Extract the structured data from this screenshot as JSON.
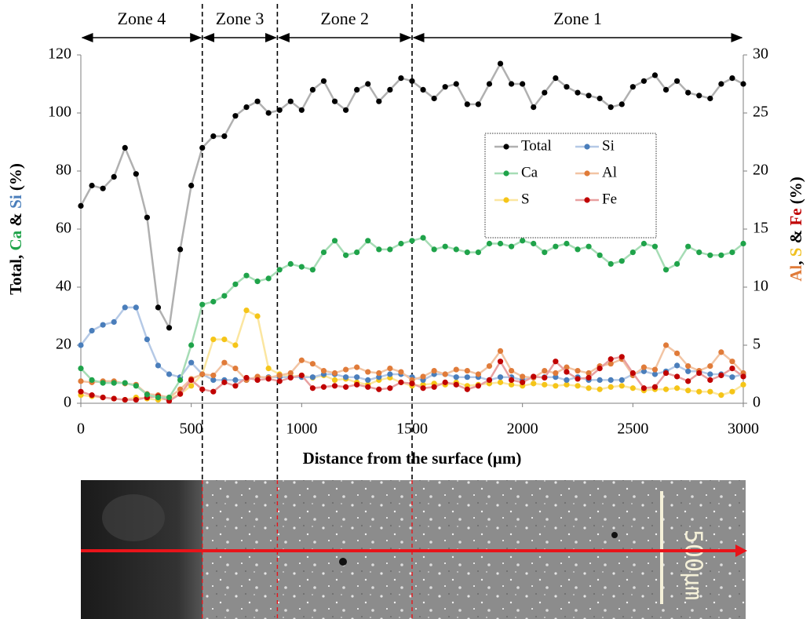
{
  "chart_data": {
    "type": "line",
    "xlabel": "Distance from the surface (µm)",
    "ylabel_parts": [
      {
        "text": "Total, ",
        "color": "#000000"
      },
      {
        "text": "Ca",
        "color": "#1fa34a"
      },
      {
        "text": " & ",
        "color": "#000000"
      },
      {
        "text": "Si",
        "color": "#4a7ebb"
      },
      {
        "text": " (%)",
        "color": "#000000"
      }
    ],
    "y2label_parts": [
      {
        "text": "Al",
        "color": "#e07b39"
      },
      {
        "text": ", ",
        "color": "#000000"
      },
      {
        "text": "S",
        "color": "#f0c020"
      },
      {
        "text": " & ",
        "color": "#000000"
      },
      {
        "text": "Fe",
        "color": "#c00000"
      },
      {
        "text": " (%)",
        "color": "#000000"
      }
    ],
    "xlim": [
      0,
      3000
    ],
    "xticks": [
      0,
      500,
      1000,
      1500,
      2000,
      2500,
      3000
    ],
    "ylim": [
      0,
      120
    ],
    "yticks": [
      0,
      20,
      40,
      60,
      80,
      100,
      120
    ],
    "y2lim": [
      0,
      30
    ],
    "y2ticks": [
      0,
      5,
      10,
      15,
      20,
      25,
      30
    ],
    "zones": [
      {
        "label": "Zone 4",
        "from": 0,
        "to": 550
      },
      {
        "label": "Zone 3",
        "from": 550,
        "to": 890
      },
      {
        "label": "Zone 2",
        "from": 890,
        "to": 1500
      },
      {
        "label": "Zone 1",
        "from": 1500,
        "to": 3000
      }
    ],
    "scale_bar": "500µm",
    "x": [
      0,
      50,
      100,
      150,
      200,
      250,
      300,
      350,
      400,
      450,
      500,
      550,
      600,
      650,
      700,
      750,
      800,
      850,
      900,
      950,
      1000,
      1050,
      1100,
      1150,
      1200,
      1250,
      1300,
      1350,
      1400,
      1450,
      1500,
      1550,
      1600,
      1650,
      1700,
      1750,
      1800,
      1850,
      1900,
      1950,
      2000,
      2050,
      2100,
      2150,
      2200,
      2250,
      2300,
      2350,
      2400,
      2450,
      2500,
      2550,
      2600,
      2650,
      2700,
      2750,
      2800,
      2850,
      2900,
      2950,
      3000
    ],
    "series": [
      {
        "name": "Total",
        "color": "#000000",
        "line_color": "#b0b0b0",
        "axis": "y",
        "values": [
          68,
          75,
          74,
          78,
          88,
          79,
          64,
          33,
          26,
          53,
          75,
          88,
          92,
          92,
          99,
          102,
          104,
          100,
          101,
          104,
          101,
          108,
          111,
          104,
          101,
          108,
          110,
          104,
          108,
          112,
          111,
          108,
          105,
          109,
          110,
          103,
          103,
          110,
          117,
          110,
          110,
          102,
          107,
          112,
          109,
          107,
          106,
          105,
          102,
          103,
          109,
          111,
          113,
          108,
          111,
          107,
          106,
          105,
          110,
          112,
          110
        ]
      },
      {
        "name": "Ca",
        "color": "#1fa34a",
        "line_color": "#a6dcb5",
        "axis": "y",
        "values": [
          12,
          8,
          7,
          7,
          7,
          6,
          3,
          2,
          2,
          8,
          20,
          34,
          35,
          37,
          41,
          44,
          42,
          43,
          46,
          48,
          47,
          46,
          52,
          56,
          51,
          52,
          56,
          53,
          53,
          55,
          56,
          57,
          53,
          54,
          53,
          52,
          52,
          55,
          55,
          54,
          56,
          55,
          52,
          54,
          55,
          53,
          54,
          51,
          48,
          49,
          52,
          55,
          54,
          46,
          48,
          54,
          52,
          51,
          51,
          52,
          55
        ]
      },
      {
        "name": "S",
        "color": "#f5c518",
        "line_color": "#fbe6a0",
        "axis": "y2",
        "values": [
          0.7,
          0.6,
          0.5,
          0.4,
          0.3,
          0.5,
          0.4,
          0.3,
          0.4,
          0.8,
          1.5,
          2.5,
          5.5,
          5.5,
          5.0,
          8.0,
          7.5,
          3.0,
          2.5,
          2.3,
          2.4,
          2.2,
          2.4,
          2.0,
          2.1,
          1.8,
          1.6,
          2.0,
          2.2,
          1.8,
          1.5,
          1.6,
          1.7,
          1.6,
          1.8,
          1.5,
          1.6,
          1.7,
          1.8,
          1.6,
          1.5,
          1.7,
          1.6,
          1.5,
          1.6,
          1.5,
          1.3,
          1.2,
          1.4,
          1.5,
          1.3,
          1.1,
          1.2,
          1.2,
          1.3,
          1.1,
          1.0,
          1.0,
          0.7,
          1.0,
          1.6
        ]
      },
      {
        "name": "Si",
        "color": "#4a7ebb",
        "line_color": "#b5c9e6",
        "axis": "y",
        "values": [
          20,
          25,
          27,
          28,
          33,
          33,
          22,
          13,
          10,
          9,
          14,
          10,
          8,
          8,
          8,
          8,
          9,
          9,
          9,
          9,
          9,
          9,
          10,
          10,
          9,
          9,
          8,
          9,
          10,
          10,
          9,
          8,
          10,
          10,
          9,
          9,
          9,
          8,
          9,
          9,
          8,
          9,
          9,
          9,
          8,
          9,
          8,
          8,
          8,
          8,
          10,
          11,
          10,
          11,
          13,
          11,
          11,
          10,
          10,
          9,
          10
        ]
      },
      {
        "name": "Al",
        "color": "#e07b39",
        "line_color": "#f2c4a3",
        "axis": "y2",
        "values": [
          1.9,
          1.8,
          1.9,
          1.9,
          1.7,
          1.6,
          0.8,
          0.7,
          0.5,
          1.2,
          2.1,
          2.5,
          2.4,
          3.5,
          3.0,
          2.0,
          2.3,
          2.2,
          2.4,
          2.6,
          3.7,
          3.4,
          2.8,
          2.6,
          2.9,
          3.1,
          2.7,
          2.6,
          3.0,
          2.7,
          2.0,
          2.3,
          2.8,
          2.5,
          2.9,
          2.8,
          2.5,
          3.2,
          4.5,
          2.8,
          2.3,
          2.2,
          2.8,
          2.6,
          3.1,
          2.8,
          2.6,
          3.2,
          3.4,
          3.8,
          2.4,
          3.1,
          2.9,
          5.0,
          4.3,
          3.2,
          2.8,
          3.2,
          4.4,
          3.6,
          2.6
        ]
      },
      {
        "name": "Fe",
        "color": "#c00000",
        "line_color": "#e8a0a0",
        "axis": "y2",
        "values": [
          1.0,
          0.7,
          0.5,
          0.4,
          0.3,
          0.3,
          0.5,
          0.6,
          0.2,
          0.8,
          2.0,
          1.2,
          1.0,
          1.8,
          1.5,
          2.2,
          2.0,
          2.1,
          1.9,
          2.2,
          2.4,
          1.3,
          1.4,
          1.5,
          1.4,
          1.6,
          1.4,
          1.2,
          1.3,
          1.8,
          1.7,
          1.3,
          1.4,
          1.8,
          1.6,
          1.2,
          1.5,
          2.0,
          3.6,
          2.0,
          1.8,
          2.3,
          2.2,
          3.6,
          2.7,
          2.1,
          2.2,
          3.0,
          3.8,
          4.0,
          2.6,
          1.3,
          1.4,
          2.6,
          2.3,
          1.9,
          2.6,
          2.0,
          2.4,
          3.0,
          2.3
        ]
      }
    ]
  }
}
